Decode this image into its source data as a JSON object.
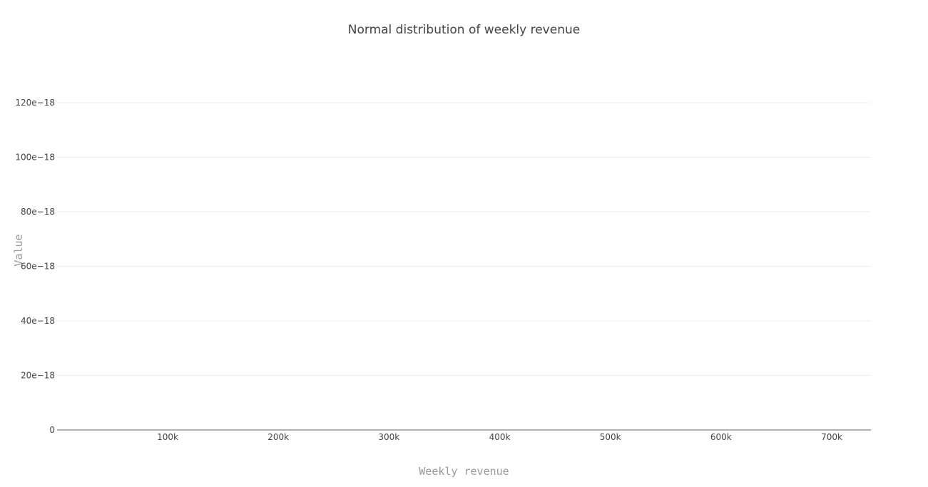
{
  "chart_data": {
    "type": "line",
    "title": "Normal distribution of weekly revenue",
    "xlabel": "Weekly revenue",
    "ylabel": "Value",
    "xlim": [
      0,
      735000
    ],
    "ylim": [
      0,
      1.28e-16
    ],
    "x_ticks": [
      {
        "value": 100000,
        "label": "100k"
      },
      {
        "value": 200000,
        "label": "200k"
      },
      {
        "value": 300000,
        "label": "300k"
      },
      {
        "value": 400000,
        "label": "400k"
      },
      {
        "value": 500000,
        "label": "500k"
      },
      {
        "value": 600000,
        "label": "600k"
      },
      {
        "value": 700000,
        "label": "700k"
      }
    ],
    "y_ticks": [
      {
        "value": 0,
        "label": "0"
      },
      {
        "value": 2e-17,
        "label": "20e−18"
      },
      {
        "value": 4e-17,
        "label": "40e−18"
      },
      {
        "value": 6e-17,
        "label": "60e−18"
      },
      {
        "value": 8e-17,
        "label": "80e−18"
      },
      {
        "value": 1e-16,
        "label": "100e−18"
      },
      {
        "value": 1.2e-16,
        "label": "120e−18"
      }
    ],
    "grid": true,
    "series": []
  },
  "colors": {
    "gridline": "#eeeeee",
    "zeroline": "#999999",
    "tick_text": "#444444"
  }
}
